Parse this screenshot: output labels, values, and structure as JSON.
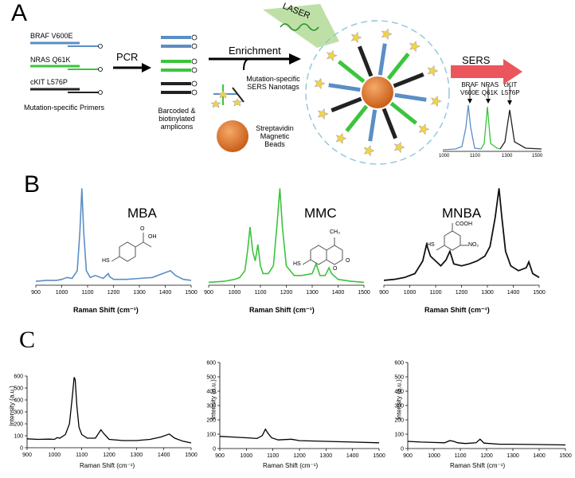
{
  "panel_a": {
    "letter": "A",
    "primers": [
      "BRAF V600E",
      "NRAS Q61K",
      "cKIT L576P"
    ],
    "primers_caption": "Mutation-specific Primers",
    "pcr_label": "PCR",
    "amplicons_caption": "Barcoded & biotinylated amplicons",
    "enrichment_label": "Enrichment",
    "nanotags_caption": "Mutation-specific SERS Nanotags",
    "beads_caption": "Streptavidin Magnetic Beads",
    "laser_label": "LASER",
    "sers_label": "SERS",
    "peak_labels": [
      "BRAF V600E",
      "NRAS Q61K",
      "cKIT L576P"
    ],
    "inset_ticks": [
      "1000",
      "1100",
      "1300",
      "1500"
    ],
    "colors": {
      "braf": "#5b8ec4",
      "nras": "#3cc43c",
      "ckit": "#222222",
      "bead": "#e07a2a",
      "tag": "#f2d24a",
      "sers_arrow": "#e8444a",
      "laser": "#a8d68a"
    }
  },
  "panel_b": {
    "letter": "B",
    "molecules": [
      "MBA",
      "MMC",
      "MNBA"
    ],
    "xlabel": "Raman Shift (cm⁻¹)",
    "xticks_a": [
      "900",
      "1000",
      "1100",
      "1200",
      "1300",
      "1400",
      "1500"
    ],
    "xticks_b": [
      "900",
      "1000",
      "1100",
      "1200",
      "1300",
      "1400",
      "1500"
    ],
    "xticks_c": [
      "900",
      "1000",
      "1100",
      "1200",
      "1300",
      "1400",
      "1500"
    ],
    "struct_labels": {
      "mba_oh": "OH",
      "mba_o": "O",
      "mba_hs": "HS",
      "mmc_ch3": "CH₃",
      "mmc_hs": "HS",
      "mmc_o1": "O",
      "mmc_o2": "O",
      "mnba_cooh": "COOH",
      "mnba_hs": "HS",
      "mnba_no2": "NO₂"
    }
  },
  "panel_c": {
    "letter": "C",
    "ylabel": "Intensity (a.u.)",
    "xlabel": "Raman Shift (cm⁻¹)",
    "yticks": [
      "0",
      "100",
      "200",
      "300",
      "400",
      "500",
      "600"
    ],
    "xticks": [
      "900",
      "1000",
      "1100",
      "1200",
      "1300",
      "1400",
      "1500"
    ]
  },
  "chart_data": [
    {
      "type": "line",
      "panel": "B1",
      "title": "MBA",
      "xlim": [
        900,
        1500
      ],
      "series": [
        {
          "color": "#5b8ec4",
          "x": [
            900,
            940,
            980,
            1000,
            1020,
            1040,
            1060,
            1070,
            1078,
            1085,
            1095,
            1110,
            1130,
            1160,
            1180,
            1185,
            1200,
            1250,
            1300,
            1350,
            1390,
            1420,
            1440,
            1470,
            1500
          ],
          "y": [
            0.04,
            0.05,
            0.05,
            0.06,
            0.08,
            0.07,
            0.15,
            0.55,
            1.0,
            0.55,
            0.15,
            0.08,
            0.1,
            0.07,
            0.12,
            0.09,
            0.06,
            0.06,
            0.07,
            0.08,
            0.12,
            0.15,
            0.1,
            0.06,
            0.05
          ]
        }
      ]
    },
    {
      "type": "line",
      "panel": "B2",
      "title": "MMC",
      "xlim": [
        900,
        1500
      ],
      "series": [
        {
          "color": "#3cc43c",
          "x": [
            900,
            960,
            1000,
            1020,
            1040,
            1050,
            1060,
            1070,
            1080,
            1090,
            1100,
            1110,
            1130,
            1150,
            1165,
            1175,
            1185,
            1200,
            1230,
            1260,
            1300,
            1315,
            1330,
            1350,
            1365,
            1375,
            1400,
            1450,
            1500
          ],
          "y": [
            0.03,
            0.04,
            0.06,
            0.08,
            0.15,
            0.35,
            0.6,
            0.35,
            0.25,
            0.42,
            0.2,
            0.12,
            0.12,
            0.2,
            0.65,
            1.0,
            0.6,
            0.2,
            0.1,
            0.1,
            0.12,
            0.22,
            0.1,
            0.1,
            0.18,
            0.12,
            0.06,
            0.04,
            0.03
          ]
        }
      ]
    },
    {
      "type": "line",
      "panel": "B3",
      "title": "MNBA",
      "xlim": [
        900,
        1500
      ],
      "series": [
        {
          "color": "#111111",
          "x": [
            900,
            940,
            980,
            1020,
            1050,
            1065,
            1080,
            1100,
            1120,
            1140,
            1155,
            1170,
            1200,
            1230,
            1260,
            1290,
            1310,
            1330,
            1345,
            1355,
            1370,
            1390,
            1420,
            1450,
            1460,
            1475,
            1500
          ],
          "y": [
            0.05,
            0.06,
            0.08,
            0.12,
            0.25,
            0.42,
            0.3,
            0.25,
            0.2,
            0.26,
            0.35,
            0.22,
            0.2,
            0.22,
            0.25,
            0.3,
            0.4,
            0.7,
            1.0,
            0.72,
            0.35,
            0.2,
            0.15,
            0.18,
            0.24,
            0.12,
            0.08
          ]
        }
      ]
    },
    {
      "type": "line",
      "panel": "C1",
      "xlim": [
        900,
        1500
      ],
      "ylim": [
        0,
        600
      ],
      "series": [
        {
          "color": "#000000",
          "x": [
            900,
            940,
            980,
            1000,
            1010,
            1020,
            1040,
            1055,
            1065,
            1072,
            1076,
            1082,
            1090,
            1100,
            1120,
            1150,
            1170,
            1180,
            1200,
            1250,
            1300,
            1350,
            1390,
            1420,
            1440,
            1470,
            1500
          ],
          "y": [
            75,
            70,
            72,
            70,
            85,
            80,
            110,
            200,
            420,
            590,
            570,
            350,
            170,
            110,
            80,
            80,
            150,
            120,
            70,
            60,
            60,
            70,
            90,
            115,
            80,
            55,
            40
          ]
        }
      ]
    },
    {
      "type": "line",
      "panel": "C2",
      "xlim": [
        900,
        1500
      ],
      "ylim": [
        0,
        600
      ],
      "series": [
        {
          "color": "#000000",
          "x": [
            900,
            950,
            1000,
            1040,
            1060,
            1072,
            1080,
            1095,
            1120,
            1170,
            1200,
            1300,
            1400,
            1500
          ],
          "y": [
            85,
            80,
            75,
            70,
            90,
            135,
            110,
            75,
            60,
            65,
            55,
            50,
            45,
            40
          ]
        }
      ]
    },
    {
      "type": "line",
      "panel": "C3",
      "xlim": [
        900,
        1500
      ],
      "ylim": [
        0,
        600
      ],
      "series": [
        {
          "color": "#000000",
          "x": [
            900,
            950,
            1000,
            1040,
            1060,
            1075,
            1090,
            1120,
            1160,
            1175,
            1190,
            1250,
            1300,
            1400,
            1500
          ],
          "y": [
            50,
            45,
            42,
            40,
            55,
            50,
            40,
            35,
            40,
            65,
            38,
            30,
            30,
            28,
            25
          ]
        }
      ]
    }
  ]
}
